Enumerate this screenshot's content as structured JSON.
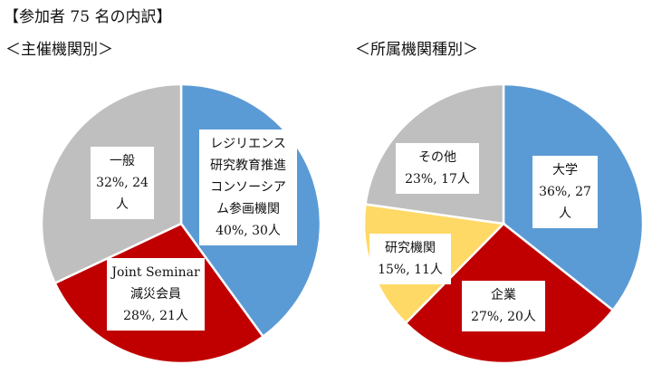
{
  "heading": "【参加者 75 名の内訳】",
  "chart_data": [
    {
      "type": "pie",
      "title": "＜主催機関別＞",
      "slices": [
        {
          "label_lines": [
            "レジリエンス",
            "研究教育推進",
            "コンソーシア",
            "ム参画機関"
          ],
          "value_text": "40%, 30人",
          "percent": 40,
          "count": 30,
          "color": "#5b9bd5"
        },
        {
          "label_lines": [
            "Joint Seminar",
            "減災会員"
          ],
          "value_text": "28%, 21人",
          "percent": 28,
          "count": 21,
          "color": "#c00000"
        },
        {
          "label_lines": [
            "一般"
          ],
          "value_text": "32%, 24",
          "value_tail": "人",
          "percent": 32,
          "count": 24,
          "color": "#bfbfbf"
        }
      ]
    },
    {
      "type": "pie",
      "title": "＜所属機関種別＞",
      "slices": [
        {
          "label_lines": [
            "大学"
          ],
          "value_text": "36%, 27",
          "value_tail": "人",
          "percent": 36,
          "count": 27,
          "color": "#5b9bd5"
        },
        {
          "label_lines": [
            "企業"
          ],
          "value_text": "27%, 20人",
          "percent": 27,
          "count": 20,
          "color": "#c00000"
        },
        {
          "label_lines": [
            "研究機関"
          ],
          "value_text": "15%, 11人",
          "percent": 15,
          "count": 11,
          "color": "#ffd966"
        },
        {
          "label_lines": [
            "その他"
          ],
          "value_text": "23%, 17人",
          "percent": 23,
          "count": 17,
          "color": "#bfbfbf"
        }
      ]
    }
  ]
}
